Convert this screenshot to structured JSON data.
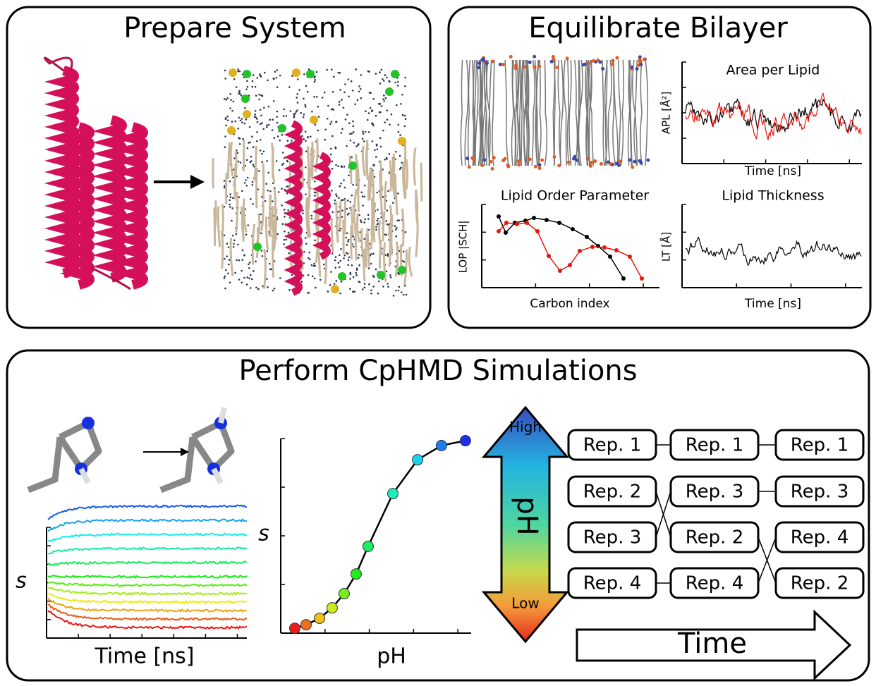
{
  "prepare": {
    "title": "Prepare System"
  },
  "equilibrate": {
    "title": "Equilibrate Bilayer",
    "apl": {
      "title": "Area per Lipid",
      "ylabel": "APL [Å²]",
      "xlabel": "Time [ns]"
    },
    "lop": {
      "title": "Lipid Order Parameter",
      "ylabel": "LOP |SCH|",
      "xlabel": "Carbon index",
      "xlim": [
        0,
        1
      ],
      "ylim": [
        0,
        1
      ],
      "series": [
        {
          "color": "#000000",
          "x": [
            0.096,
            0.136,
            0.188,
            0.248,
            0.296,
            0.368,
            0.44,
            0.516,
            0.596,
            0.66,
            0.728,
            0.804
          ],
          "values": [
            0.856,
            0.661,
            0.78,
            0.805,
            0.839,
            0.814,
            0.78,
            0.703,
            0.61,
            0.5,
            0.373,
            0.11
          ]
        },
        {
          "color": "#e8160c",
          "x": [
            0.096,
            0.14,
            0.2,
            0.256,
            0.316,
            0.38,
            0.444,
            0.5,
            0.556,
            0.628,
            0.696,
            0.764,
            0.84,
            0.908
          ],
          "values": [
            0.678,
            0.78,
            0.763,
            0.78,
            0.678,
            0.381,
            0.203,
            0.271,
            0.441,
            0.492,
            0.483,
            0.449,
            0.373,
            0.11
          ]
        }
      ]
    },
    "lt": {
      "title": "Lipid Thickness",
      "ylabel": "LT [Å]",
      "xlabel": "Time [ns]"
    }
  },
  "cphmd": {
    "title": "Perform CpHMD Simulations",
    "traces": {
      "ylabel": "s",
      "xlabel": "Time [ns]"
    },
    "titration": {
      "ylabel": "s",
      "xlabel": "pH",
      "xlim": [
        0,
        1
      ],
      "ylim": [
        0,
        1
      ],
      "x": [
        0.074,
        0.133,
        0.204,
        0.27,
        0.333,
        0.396,
        0.459,
        0.589,
        0.719,
        0.844,
        0.97
      ],
      "values": [
        0.025,
        0.043,
        0.076,
        0.13,
        0.203,
        0.304,
        0.446,
        0.717,
        0.891,
        0.964,
        0.989
      ]
    },
    "ph_scale": {
      "high": "High",
      "label": "pH",
      "low": "Low"
    },
    "replicas": [
      [
        "Rep. 1",
        "Rep. 2",
        "Rep. 3",
        "Rep. 4"
      ],
      [
        "Rep. 1",
        "Rep. 3",
        "Rep. 2",
        "Rep. 4"
      ],
      [
        "Rep. 1",
        "Rep. 3",
        "Rep. 4",
        "Rep. 2"
      ]
    ],
    "time_arrow": "Time"
  }
}
